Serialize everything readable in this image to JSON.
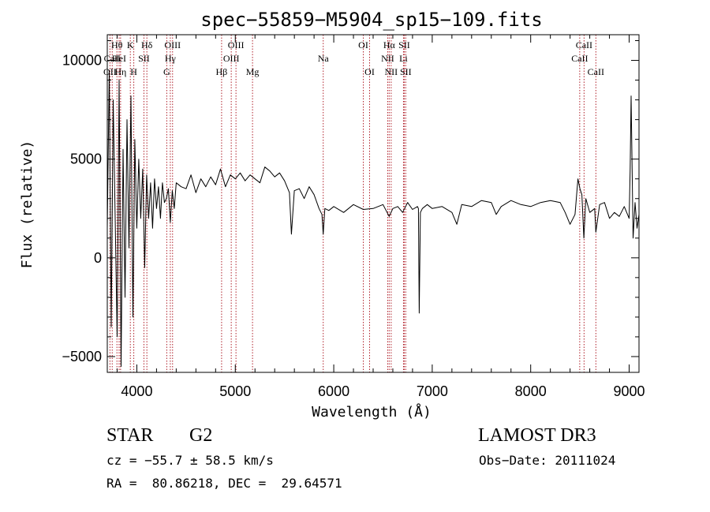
{
  "chart_data": {
    "type": "line",
    "title": "spec−55859−M5904_sp15−109.fits",
    "xlabel": "Wavelength (Å)",
    "ylabel": "Flux (relative)",
    "xlim": [
      3700,
      9100
    ],
    "ylim": [
      -5800,
      11300
    ],
    "xticks": [
      {
        "value": 4000,
        "label": "4000"
      },
      {
        "value": 5000,
        "label": "5000"
      },
      {
        "value": 6000,
        "label": "6000"
      },
      {
        "value": 7000,
        "label": "7000"
      },
      {
        "value": 8000,
        "label": "8000"
      },
      {
        "value": 9000,
        "label": "9000"
      }
    ],
    "yticks": [
      {
        "value": 10000,
        "label": "10000"
      },
      {
        "value": 5000,
        "label": "5000"
      },
      {
        "value": 0,
        "label": "0"
      },
      {
        "value": -5000,
        "label": "−5000"
      }
    ],
    "series": [
      {
        "name": "flux",
        "x": [
          3700,
          3720,
          3740,
          3760,
          3780,
          3800,
          3820,
          3840,
          3860,
          3880,
          3900,
          3920,
          3940,
          3960,
          3980,
          4000,
          4020,
          4040,
          4060,
          4080,
          4100,
          4120,
          4140,
          4160,
          4180,
          4200,
          4220,
          4240,
          4260,
          4280,
          4300,
          4320,
          4340,
          4360,
          4380,
          4400,
          4450,
          4500,
          4550,
          4600,
          4650,
          4700,
          4750,
          4800,
          4850,
          4900,
          4950,
          5000,
          5050,
          5100,
          5150,
          5200,
          5250,
          5300,
          5350,
          5400,
          5450,
          5500,
          5550,
          5570,
          5600,
          5650,
          5700,
          5750,
          5800,
          5850,
          5880,
          5893,
          5910,
          5950,
          6000,
          6100,
          6200,
          6300,
          6400,
          6500,
          6563,
          6600,
          6650,
          6700,
          6750,
          6800,
          6850,
          6860,
          6868,
          6880,
          6900,
          6950,
          7000,
          7100,
          7200,
          7250,
          7300,
          7400,
          7500,
          7600,
          7650,
          7700,
          7800,
          7900,
          8000,
          8100,
          8200,
          8300,
          8350,
          8400,
          8450,
          8480,
          8500,
          8520,
          8540,
          8560,
          8600,
          8650,
          8662,
          8700,
          8750,
          8800,
          8850,
          8900,
          8950,
          9000,
          9010,
          9020,
          9040,
          9060,
          9080,
          9100
        ],
        "y": [
          1500,
          9500,
          -3500,
          8000,
          2000,
          -4000,
          9000,
          -5500,
          5500,
          -2000,
          7000,
          500,
          8200,
          -3000,
          6000,
          1500,
          5000,
          2000,
          4500,
          -500,
          4200,
          2000,
          3800,
          1500,
          4000,
          2500,
          3600,
          2000,
          3800,
          2800,
          3000,
          3500,
          1800,
          3400,
          2500,
          3800,
          3600,
          3500,
          4200,
          3300,
          4000,
          3600,
          4100,
          3700,
          4500,
          3600,
          4200,
          4000,
          4300,
          3900,
          4200,
          4000,
          3800,
          4600,
          4400,
          4100,
          4300,
          3900,
          3300,
          1200,
          3400,
          3500,
          3000,
          3600,
          3200,
          2500,
          2200,
          1200,
          2500,
          2400,
          2600,
          2300,
          2700,
          2450,
          2500,
          2700,
          2100,
          2500,
          2600,
          2300,
          2800,
          2450,
          2600,
          2500,
          -2800,
          2300,
          2500,
          2700,
          2500,
          2600,
          2300,
          1700,
          2700,
          2600,
          2900,
          2800,
          2200,
          2600,
          2900,
          2700,
          2600,
          2800,
          2900,
          2800,
          2300,
          1700,
          2200,
          4000,
          3500,
          3200,
          1000,
          3000,
          2300,
          2500,
          1300,
          2700,
          2800,
          2000,
          2300,
          2100,
          2600,
          2000,
          4500,
          8200,
          1000,
          2800,
          1500,
          2200
        ]
      }
    ],
    "spectral_lines": [
      {
        "name": "Hθ",
        "wavelength": 3798,
        "row": 1
      },
      {
        "name": "OII",
        "wavelength": 3727,
        "row": 3
      },
      {
        "name": "CaII",
        "wavelength": 3750,
        "row": 2
      },
      {
        "name": "HeI",
        "wavelength": 3820,
        "row": 2
      },
      {
        "name": "Hη",
        "wavelength": 3835,
        "row": 3
      },
      {
        "name": "K",
        "wavelength": 3934,
        "row": 1
      },
      {
        "name": "H",
        "wavelength": 3969,
        "row": 3
      },
      {
        "name": "SII",
        "wavelength": 4072,
        "row": 2
      },
      {
        "name": "Hδ",
        "wavelength": 4102,
        "row": 1
      },
      {
        "name": "G",
        "wavelength": 4304,
        "row": 3
      },
      {
        "name": "Hγ",
        "wavelength": 4340,
        "row": 2
      },
      {
        "name": "OIII",
        "wavelength": 4363,
        "row": 1
      },
      {
        "name": "Hβ",
        "wavelength": 4861,
        "row": 3
      },
      {
        "name": "OIII",
        "wavelength": 4959,
        "row": 2
      },
      {
        "name": "OIII",
        "wavelength": 5007,
        "row": 1
      },
      {
        "name": "Mg",
        "wavelength": 5175,
        "row": 3
      },
      {
        "name": "Na",
        "wavelength": 5893,
        "row": 2
      },
      {
        "name": "OI",
        "wavelength": 6300,
        "row": 1
      },
      {
        "name": "OI",
        "wavelength": 6364,
        "row": 3
      },
      {
        "name": "NII",
        "wavelength": 6548,
        "row": 2
      },
      {
        "name": "Hα",
        "wavelength": 6563,
        "row": 1
      },
      {
        "name": "NII",
        "wavelength": 6583,
        "row": 3
      },
      {
        "name": "Li",
        "wavelength": 6708,
        "row": 2
      },
      {
        "name": "SII",
        "wavelength": 6716,
        "row": 1
      },
      {
        "name": "SII",
        "wavelength": 6731,
        "row": 3
      },
      {
        "name": "CaII",
        "wavelength": 8498,
        "row": 2
      },
      {
        "name": "CaII",
        "wavelength": 8542,
        "row": 1
      },
      {
        "name": "CaII",
        "wavelength": 8662,
        "row": 3
      }
    ]
  },
  "info": {
    "class_label": "STAR",
    "subclass": "G2",
    "survey": "LAMOST DR3",
    "cz_text": "cz = −55.7 ± 58.5 km/s",
    "obs_date_text": "Obs−Date: 20111024",
    "coords_text": "RA =  80.86218, DEC =  29.64571"
  },
  "colors": {
    "line_marker": "#b0202a",
    "spectrum": "#000000",
    "axes": "#000000"
  }
}
